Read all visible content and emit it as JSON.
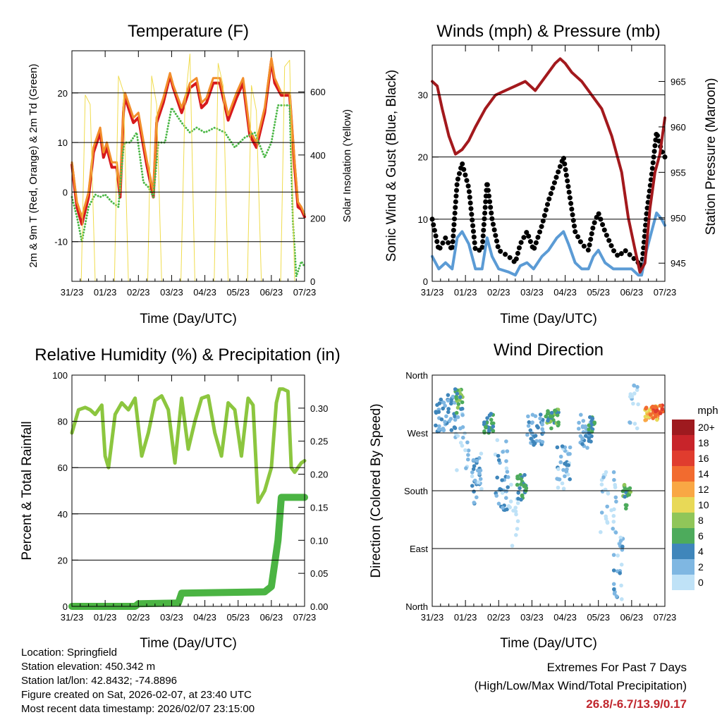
{
  "colors": {
    "red": "#d7191c",
    "orange": "#f28e2b",
    "green": "#4db848",
    "yellow": "#f0dc4e",
    "maroon": "#a3191d",
    "blue": "#5b9bd5",
    "black": "#000000",
    "rh": "#8cc63f",
    "precip": "#4bb443",
    "extremes": "#c0262d"
  },
  "info": {
    "location": "Location: Springfield",
    "elevation": "Station elevation: 450.342 m",
    "latlon": "Station lat/lon: 42.8432; -74.8896",
    "created": "Figure created on Sat, 2026-02-07, at 23:40 UTC",
    "recent": "Most recent data timestamp: 2026/02/07 23:15:00"
  },
  "extremes": {
    "title": "Extremes For Past 7 Days",
    "subtitle": "(High/Low/Max Wind/Total Precipitation)",
    "values": "26.8/-6.7/13.9/0.17"
  },
  "chart_data": [
    {
      "id": "temperature",
      "type": "line",
      "title": "Temperature (F)",
      "xlabel": "Time (Day/UTC)",
      "ylabel": "2m & 9m T (Red, Orange) & 2m Td (Green)",
      "y2label": "Solar Insolation (Yellow)",
      "xlim": [
        0,
        7
      ],
      "xticks": [
        "31/23",
        "01/23",
        "02/23",
        "03/23",
        "04/23",
        "05/23",
        "06/23",
        "07/23"
      ],
      "ylim": [
        -18,
        28.5
      ],
      "yticks": [
        -10,
        0,
        10,
        20
      ],
      "y2lim": [
        0,
        730
      ],
      "y2ticks": [
        0,
        200,
        400,
        600
      ],
      "gridlines": [
        -10,
        0,
        10,
        20
      ],
      "series": [
        {
          "name": "2m T",
          "color": "red",
          "width": 4,
          "x": [
            0,
            0.15,
            0.3,
            0.5,
            0.65,
            0.85,
            0.95,
            1.05,
            1.2,
            1.35,
            1.45,
            1.55,
            1.6,
            1.65,
            1.85,
            2.0,
            2.25,
            2.45,
            2.55,
            2.75,
            2.95,
            3.05,
            3.3,
            3.55,
            3.75,
            3.9,
            4.05,
            4.25,
            4.45,
            4.7,
            4.95,
            5.15,
            5.35,
            5.55,
            5.8,
            6.0,
            6.1,
            6.3,
            6.45,
            6.55,
            6.7,
            6.8,
            6.9,
            7.0
          ],
          "y": [
            5.5,
            -3,
            -6.5,
            -1,
            8,
            12,
            7,
            9,
            5,
            5,
            -1,
            16,
            19.5,
            18,
            14,
            15,
            5.5,
            -1,
            14,
            18,
            23.5,
            21,
            16,
            21,
            22,
            17,
            18,
            22,
            22,
            14.5,
            19,
            22,
            11.5,
            9,
            16,
            26.5,
            22,
            19.5,
            19.5,
            19.5,
            5,
            -3,
            -3.5,
            -5
          ]
        },
        {
          "name": "9m T",
          "color": "orange",
          "width": 3,
          "x": [
            0,
            0.15,
            0.3,
            0.5,
            0.65,
            0.85,
            0.95,
            1.05,
            1.2,
            1.35,
            1.45,
            1.55,
            1.6,
            1.65,
            1.85,
            2.0,
            2.25,
            2.45,
            2.55,
            2.75,
            2.95,
            3.05,
            3.3,
            3.55,
            3.75,
            3.9,
            4.05,
            4.25,
            4.45,
            4.7,
            4.95,
            5.15,
            5.35,
            5.55,
            5.8,
            6.0,
            6.1,
            6.3,
            6.45,
            6.55,
            6.7,
            6.8,
            6.9,
            7.0
          ],
          "y": [
            6,
            -2,
            -5,
            0,
            9,
            13,
            8,
            10,
            6,
            6,
            0,
            17,
            20,
            19,
            15,
            16,
            6.5,
            0,
            15,
            19,
            24,
            21.5,
            17,
            22,
            23,
            18,
            19,
            23,
            23,
            15.5,
            20,
            23,
            12.5,
            10,
            17,
            27,
            23,
            20,
            20,
            20,
            6,
            -2,
            -3,
            -4.5
          ]
        },
        {
          "name": "2m Td",
          "color": "green",
          "width": 3,
          "dotted": true,
          "x": [
            0,
            0.15,
            0.3,
            0.5,
            0.7,
            0.85,
            1.0,
            1.2,
            1.4,
            1.55,
            1.6,
            1.75,
            1.95,
            2.15,
            2.3,
            2.45,
            2.6,
            2.8,
            3.0,
            3.3,
            3.55,
            3.75,
            4.0,
            4.3,
            4.6,
            4.9,
            5.2,
            5.5,
            5.8,
            6.0,
            6.2,
            6.4,
            6.55,
            6.65,
            6.75,
            6.9,
            7.0
          ],
          "y": [
            -1,
            -5,
            -10,
            -3,
            -0.5,
            -1,
            -0.5,
            -2,
            -3,
            9,
            10,
            10,
            12,
            2,
            1,
            -1,
            10,
            10,
            17,
            14,
            12,
            13,
            12,
            13,
            12,
            9,
            11,
            12,
            7,
            10,
            17.5,
            17.5,
            17.5,
            -6,
            -17,
            -14,
            -15
          ]
        },
        {
          "name": "Solar Insolation",
          "color": "yellow",
          "width": 1,
          "axis": "y2",
          "x": [
            0,
            0.28,
            0.4,
            0.55,
            0.7,
            1.28,
            1.4,
            1.55,
            1.7,
            2.28,
            2.4,
            2.55,
            2.7,
            3.28,
            3.4,
            3.55,
            3.7,
            4.28,
            4.4,
            4.55,
            4.7,
            5.28,
            5.4,
            5.55,
            5.7,
            6.28,
            6.4,
            6.55,
            6.7,
            7.0
          ],
          "y": [
            0,
            0,
            590,
            560,
            0,
            0,
            650,
            600,
            0,
            0,
            650,
            560,
            0,
            0,
            560,
            720,
            0,
            0,
            690,
            620,
            0,
            0,
            620,
            540,
            0,
            0,
            680,
            700,
            0,
            0
          ]
        }
      ]
    },
    {
      "id": "winds",
      "type": "line",
      "title": "Winds (mph) & Pressure (mb)",
      "xlabel": "Time (Day/UTC)",
      "ylabel": "Sonic Wind & Gust (Blue, Black)",
      "y2label": "Station Pressure (Maroon)",
      "xlim": [
        0,
        7
      ],
      "xticks": [
        "31/23",
        "01/23",
        "02/23",
        "03/23",
        "04/23",
        "05/23",
        "06/23",
        "07/23"
      ],
      "ylim": [
        0,
        38
      ],
      "yticks": [
        0,
        10,
        20,
        30
      ],
      "y2lim": [
        943,
        969
      ],
      "y2ticks": [
        945,
        950,
        955,
        960,
        965
      ],
      "gridlines": [
        10,
        20,
        30
      ],
      "series": [
        {
          "name": "Gust",
          "color": "black",
          "width": 7,
          "dotted": true,
          "x": [
            0,
            0.2,
            0.4,
            0.6,
            0.75,
            0.9,
            1.1,
            1.3,
            1.5,
            1.65,
            1.8,
            2.0,
            2.3,
            2.5,
            2.65,
            2.85,
            3.05,
            3.3,
            3.5,
            3.75,
            3.95,
            4.1,
            4.3,
            4.5,
            4.7,
            4.85,
            5.0,
            5.2,
            5.45,
            5.6,
            5.8,
            6.0,
            6.2,
            6.3,
            6.45,
            6.6,
            6.75,
            6.9,
            7.0
          ],
          "y": [
            10,
            5,
            7,
            5,
            16,
            19,
            15,
            5,
            5,
            16,
            10,
            5,
            4,
            3,
            6,
            8,
            5,
            9,
            13,
            17,
            20,
            15,
            8,
            6,
            5,
            9,
            11,
            8,
            5,
            4,
            5,
            4,
            3,
            2,
            11,
            17,
            24,
            21,
            20
          ]
        },
        {
          "name": "Sonic Wind",
          "color": "blue",
          "width": 4,
          "x": [
            0,
            0.2,
            0.4,
            0.6,
            0.75,
            0.9,
            1.1,
            1.3,
            1.5,
            1.65,
            1.8,
            2.0,
            2.3,
            2.5,
            2.65,
            2.85,
            3.05,
            3.3,
            3.5,
            3.75,
            3.95,
            4.1,
            4.3,
            4.5,
            4.7,
            4.85,
            5.0,
            5.2,
            5.45,
            5.6,
            5.8,
            6.0,
            6.2,
            6.3,
            6.45,
            6.6,
            6.75,
            6.9,
            7.0
          ],
          "y": [
            4,
            2,
            3,
            2,
            7,
            8,
            6,
            2,
            2,
            7,
            4,
            2,
            1.5,
            1,
            2.5,
            3,
            2,
            4,
            5,
            7,
            8,
            6,
            3,
            2,
            2,
            4,
            5,
            3,
            2,
            2,
            2,
            2,
            1,
            1,
            5,
            8,
            11,
            10,
            9
          ]
        },
        {
          "name": "Station Pressure",
          "color": "maroon",
          "width": 4,
          "axis": "y2",
          "x": [
            0,
            0.15,
            0.3,
            0.5,
            0.7,
            0.9,
            1.1,
            1.3,
            1.6,
            1.9,
            2.2,
            2.5,
            2.8,
            3.1,
            3.4,
            3.7,
            3.85,
            4.0,
            4.2,
            4.5,
            4.8,
            5.1,
            5.4,
            5.7,
            5.9,
            6.1,
            6.25,
            6.4,
            6.55,
            6.7,
            6.85,
            7.0
          ],
          "y": [
            965,
            964.5,
            962,
            959,
            957,
            957.5,
            958.5,
            960,
            962,
            963.5,
            964,
            964.5,
            965,
            964,
            965.5,
            967,
            967.5,
            967,
            966,
            965,
            963.5,
            962,
            959,
            955,
            950,
            946.5,
            944,
            945,
            951,
            955,
            957,
            961
          ]
        }
      ]
    },
    {
      "id": "humidity",
      "type": "line",
      "title": "Relative Humidity (%) & Precipitation (in)",
      "xlabel": "Time (Day/UTC)",
      "ylabel": "Percent & Total Rainfall",
      "xlim": [
        0,
        7
      ],
      "xticks": [
        "31/23",
        "01/23",
        "02/23",
        "03/23",
        "04/23",
        "05/23",
        "06/23",
        "07/23"
      ],
      "ylim": [
        0,
        100
      ],
      "yticks": [
        0,
        20,
        40,
        60,
        80,
        100
      ],
      "y2lim": [
        0,
        0.35
      ],
      "y2ticks": [
        "0.00",
        "0.05",
        "0.10",
        "0.15",
        "0.20",
        "0.25",
        "0.30"
      ],
      "gridlines": [
        20,
        40,
        60,
        80
      ],
      "series": [
        {
          "name": "Relative Humidity",
          "color": "rh",
          "width": 5,
          "x": [
            0,
            0.2,
            0.4,
            0.55,
            0.7,
            0.9,
            1.0,
            1.1,
            1.3,
            1.5,
            1.7,
            1.9,
            2.1,
            2.3,
            2.5,
            2.7,
            2.9,
            3.1,
            3.3,
            3.5,
            3.7,
            3.9,
            4.1,
            4.3,
            4.5,
            4.7,
            4.9,
            5.1,
            5.3,
            5.45,
            5.6,
            5.8,
            6.0,
            6.15,
            6.25,
            6.35,
            6.5,
            6.6,
            6.7,
            6.8,
            6.9,
            7.0
          ],
          "y": [
            75,
            85,
            86,
            85,
            83,
            87,
            65,
            60,
            83,
            88,
            85,
            90,
            65,
            75,
            89,
            91,
            85,
            62,
            90,
            68,
            80,
            90,
            91,
            75,
            65,
            88,
            85,
            65,
            90,
            87,
            45,
            50,
            60,
            88,
            94,
            94,
            93,
            60,
            58,
            60,
            62,
            63
          ]
        },
        {
          "name": "Total Precipitation",
          "color": "precip",
          "width": 10,
          "axis": "y2",
          "x": [
            0,
            1.9,
            2.0,
            3.2,
            3.3,
            5.8,
            6.0,
            6.2,
            6.3,
            7.0
          ],
          "y": [
            0,
            0,
            0.004,
            0.005,
            0.02,
            0.022,
            0.03,
            0.1,
            0.165,
            0.165
          ]
        }
      ]
    },
    {
      "id": "direction",
      "type": "scatter",
      "title": "Wind Direction",
      "xlabel": "Time (Day/UTC)",
      "ylabel": "Direction (Colored By Speed)",
      "xlim": [
        0,
        7
      ],
      "xticks": [
        "31/23",
        "01/23",
        "02/23",
        "03/23",
        "04/23",
        "05/23",
        "06/23",
        "07/23"
      ],
      "ylim": [
        0,
        360
      ],
      "yticks": [
        {
          "value": 0,
          "label": "North"
        },
        {
          "value": 90,
          "label": "East"
        },
        {
          "value": 180,
          "label": "South"
        },
        {
          "value": 270,
          "label": "West"
        },
        {
          "value": 360,
          "label": "North"
        }
      ],
      "gridlines": [
        90,
        180,
        270
      ],
      "clusters": [
        {
          "x": 0.4,
          "y": 300,
          "dx": 0.3,
          "dy": 30,
          "n": 45,
          "speed": 4
        },
        {
          "x": 0.8,
          "y": 320,
          "dx": 0.12,
          "dy": 20,
          "n": 20,
          "speed": 7
        },
        {
          "x": 0.9,
          "y": 260,
          "dx": 0.2,
          "dy": 60,
          "n": 20,
          "speed": 2
        },
        {
          "x": 1.35,
          "y": 200,
          "dx": 0.15,
          "dy": 40,
          "n": 30,
          "speed": 3
        },
        {
          "x": 1.7,
          "y": 285,
          "dx": 0.15,
          "dy": 15,
          "n": 25,
          "speed": 6
        },
        {
          "x": 2.1,
          "y": 200,
          "dx": 0.2,
          "dy": 60,
          "n": 35,
          "speed": 3
        },
        {
          "x": 2.45,
          "y": 140,
          "dx": 0.15,
          "dy": 50,
          "n": 15,
          "speed": 0
        },
        {
          "x": 2.7,
          "y": 185,
          "dx": 0.15,
          "dy": 20,
          "n": 25,
          "speed": 6
        },
        {
          "x": 3.1,
          "y": 275,
          "dx": 0.25,
          "dy": 25,
          "n": 35,
          "speed": 4
        },
        {
          "x": 3.6,
          "y": 295,
          "dx": 0.2,
          "dy": 20,
          "n": 30,
          "speed": 7
        },
        {
          "x": 3.95,
          "y": 215,
          "dx": 0.2,
          "dy": 35,
          "n": 30,
          "speed": 3
        },
        {
          "x": 4.6,
          "y": 270,
          "dx": 0.2,
          "dy": 30,
          "n": 30,
          "speed": 4
        },
        {
          "x": 4.8,
          "y": 280,
          "dx": 0.1,
          "dy": 15,
          "n": 15,
          "speed": 6
        },
        {
          "x": 5.3,
          "y": 160,
          "dx": 0.25,
          "dy": 50,
          "n": 30,
          "speed": 1
        },
        {
          "x": 5.6,
          "y": 60,
          "dx": 0.15,
          "dy": 55,
          "n": 25,
          "speed": 3
        },
        {
          "x": 5.85,
          "y": 170,
          "dx": 0.12,
          "dy": 20,
          "n": 20,
          "speed": 7
        },
        {
          "x": 6.05,
          "y": 310,
          "dx": 0.15,
          "dy": 40,
          "n": 15,
          "speed": 2
        },
        {
          "x": 6.6,
          "y": 300,
          "dx": 0.2,
          "dy": 12,
          "n": 40,
          "speed": 13
        },
        {
          "x": 6.8,
          "y": 305,
          "dx": 0.15,
          "dy": 8,
          "n": 20,
          "speed": 16
        }
      ],
      "colorbar": {
        "title": "mph",
        "levels": [
          "20+",
          "18",
          "16",
          "14",
          "12",
          "10",
          "8",
          "6",
          "4",
          "2",
          "0"
        ],
        "colors": [
          "#9e1a1f",
          "#c8242a",
          "#e03c2e",
          "#f26b2f",
          "#f9a744",
          "#e8d957",
          "#90c659",
          "#4dab5c",
          "#3f86bb",
          "#7fb7e2",
          "#bfe2f7"
        ]
      }
    }
  ]
}
